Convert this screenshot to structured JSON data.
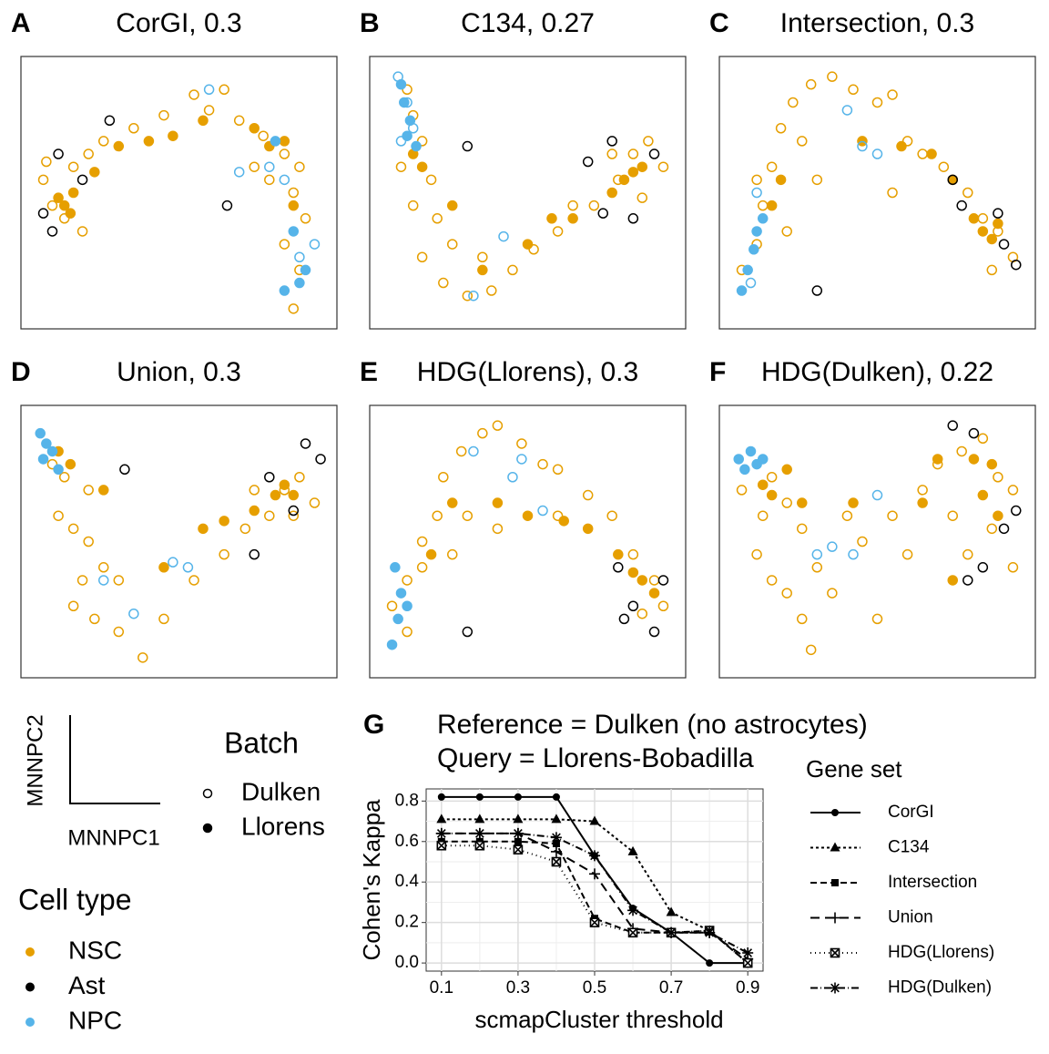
{
  "chart_data": [
    {
      "type": "scatter",
      "panel_label": "A",
      "title": "CorGI, 0.3",
      "xlim": [
        0,
        100
      ],
      "ylim": [
        0,
        100
      ],
      "series": [
        {
          "color": "#E69F00",
          "filled": false,
          "x": [
            5,
            8,
            12,
            15,
            20,
            25,
            35,
            45,
            55,
            60,
            70,
            78,
            85,
            90,
            88,
            92,
            85,
            90,
            88,
            80,
            18,
            6,
            65,
            75
          ],
          "y": [
            55,
            45,
            40,
            60,
            65,
            70,
            75,
            80,
            88,
            82,
            78,
            72,
            65,
            60,
            50,
            40,
            30,
            20,
            5,
            55,
            35,
            62,
            90,
            60
          ]
        },
        {
          "color": "#E69F00",
          "filled": true,
          "x": [
            10,
            12,
            15,
            22,
            30,
            40,
            48,
            58,
            75,
            80,
            85,
            88,
            14
          ],
          "y": [
            48,
            45,
            50,
            58,
            68,
            70,
            72,
            78,
            75,
            68,
            70,
            45,
            42
          ]
        },
        {
          "color": "#000000",
          "filled": false,
          "x": [
            5,
            10,
            18,
            27,
            66,
            8
          ],
          "y": [
            42,
            65,
            55,
            78,
            45,
            35
          ]
        },
        {
          "color": "#56B4E9",
          "filled": false,
          "x": [
            60,
            85,
            90,
            95,
            80,
            70
          ],
          "y": [
            90,
            55,
            25,
            30,
            60,
            58
          ]
        },
        {
          "color": "#56B4E9",
          "filled": true,
          "x": [
            88,
            90,
            92,
            85,
            82
          ],
          "y": [
            35,
            15,
            20,
            12,
            70
          ]
        }
      ]
    },
    {
      "type": "scatter",
      "panel_label": "B",
      "title": "C134, 0.27",
      "xlim": [
        0,
        100
      ],
      "ylim": [
        0,
        100
      ],
      "series": [
        {
          "color": "#E69F00",
          "filled": false,
          "x": [
            10,
            12,
            15,
            8,
            18,
            20,
            15,
            22,
            30,
            38,
            45,
            52,
            60,
            65,
            72,
            80,
            85,
            90,
            95,
            78,
            25,
            35,
            12,
            88
          ],
          "y": [
            90,
            80,
            70,
            60,
            55,
            40,
            25,
            15,
            10,
            12,
            20,
            28,
            35,
            45,
            45,
            55,
            65,
            70,
            60,
            65,
            30,
            25,
            45,
            48
          ]
        },
        {
          "color": "#E69F00",
          "filled": true,
          "x": [
            12,
            15,
            25,
            35,
            50,
            58,
            65,
            78,
            82,
            85,
            88
          ],
          "y": [
            65,
            60,
            45,
            20,
            30,
            40,
            40,
            50,
            55,
            58,
            60
          ]
        },
        {
          "color": "#000000",
          "filled": false,
          "x": [
            30,
            70,
            78,
            92,
            85,
            75
          ],
          "y": [
            68,
            62,
            70,
            65,
            40,
            42
          ]
        },
        {
          "color": "#56B4E9",
          "filled": false,
          "x": [
            7,
            10,
            12,
            8,
            42,
            32
          ],
          "y": [
            95,
            85,
            75,
            70,
            33,
            10
          ]
        },
        {
          "color": "#56B4E9",
          "filled": true,
          "x": [
            8,
            9,
            11,
            10,
            13
          ],
          "y": [
            92,
            85,
            78,
            72,
            68
          ]
        }
      ]
    },
    {
      "type": "scatter",
      "panel_label": "C",
      "title": "Intersection, 0.3",
      "xlim": [
        0,
        100
      ],
      "ylim": [
        0,
        100
      ],
      "series": [
        {
          "color": "#E69F00",
          "filled": false,
          "x": [
            5,
            10,
            12,
            15,
            18,
            22,
            28,
            35,
            42,
            50,
            55,
            60,
            65,
            72,
            80,
            85,
            90,
            95,
            88,
            25,
            30,
            20,
            10,
            55
          ],
          "y": [
            20,
            30,
            45,
            60,
            75,
            85,
            92,
            95,
            90,
            85,
            88,
            70,
            65,
            60,
            50,
            40,
            35,
            25,
            20,
            70,
            55,
            35,
            55,
            50
          ]
        },
        {
          "color": "#E69F00",
          "filled": true,
          "x": [
            15,
            18,
            45,
            58,
            68,
            75,
            82,
            85,
            88,
            90
          ],
          "y": [
            45,
            55,
            70,
            68,
            65,
            55,
            40,
            35,
            32,
            38
          ]
        },
        {
          "color": "#000000",
          "filled": false,
          "x": [
            30,
            75,
            78,
            92,
            96,
            90
          ],
          "y": [
            12,
            55,
            45,
            30,
            22,
            42
          ]
        },
        {
          "color": "#56B4E9",
          "filled": false,
          "x": [
            10,
            40,
            50,
            45,
            8
          ],
          "y": [
            50,
            82,
            65,
            68,
            15
          ]
        },
        {
          "color": "#56B4E9",
          "filled": true,
          "x": [
            5,
            7,
            9,
            10,
            12
          ],
          "y": [
            12,
            20,
            28,
            35,
            40
          ]
        }
      ]
    },
    {
      "type": "scatter",
      "panel_label": "D",
      "title": "Union, 0.3",
      "xlim": [
        0,
        100
      ],
      "ylim": [
        0,
        100
      ],
      "series": [
        {
          "color": "#E69F00",
          "filled": false,
          "x": [
            8,
            12,
            10,
            15,
            20,
            25,
            18,
            15,
            22,
            30,
            38,
            45,
            55,
            65,
            72,
            80,
            85,
            90,
            95,
            75,
            30,
            20,
            88
          ],
          "y": [
            80,
            75,
            60,
            55,
            50,
            40,
            35,
            25,
            20,
            15,
            5,
            20,
            35,
            45,
            55,
            60,
            70,
            75,
            65,
            70,
            35,
            70,
            60
          ]
        },
        {
          "color": "#E69F00",
          "filled": true,
          "x": [
            10,
            14,
            25,
            45,
            58,
            65,
            75,
            82,
            85,
            88
          ],
          "y": [
            85,
            80,
            70,
            40,
            55,
            58,
            62,
            68,
            72,
            68
          ]
        },
        {
          "color": "#000000",
          "filled": false,
          "x": [
            32,
            80,
            92,
            97,
            88,
            75
          ],
          "y": [
            78,
            75,
            88,
            82,
            62,
            45
          ]
        },
        {
          "color": "#56B4E9",
          "filled": false,
          "x": [
            25,
            35,
            48,
            53
          ],
          "y": [
            35,
            22,
            42,
            40
          ]
        },
        {
          "color": "#56B4E9",
          "filled": true,
          "x": [
            4,
            6,
            5,
            8,
            10
          ],
          "y": [
            92,
            88,
            82,
            85,
            78
          ]
        }
      ]
    },
    {
      "type": "scatter",
      "panel_label": "E",
      "title": "HDG(Llorens), 0.3",
      "xlim": [
        0,
        100
      ],
      "ylim": [
        0,
        100
      ],
      "series": [
        {
          "color": "#E69F00",
          "filled": false,
          "x": [
            5,
            10,
            15,
            20,
            22,
            28,
            35,
            40,
            48,
            55,
            60,
            70,
            78,
            85,
            92,
            95,
            88,
            30,
            40,
            15,
            25,
            60,
            10
          ],
          "y": [
            25,
            35,
            50,
            60,
            75,
            85,
            92,
            95,
            88,
            80,
            78,
            68,
            60,
            45,
            35,
            25,
            22,
            60,
            55,
            40,
            45,
            60,
            15
          ]
        },
        {
          "color": "#E69F00",
          "filled": true,
          "x": [
            18,
            25,
            40,
            50,
            62,
            70,
            80,
            85,
            88,
            92
          ],
          "y": [
            45,
            65,
            65,
            60,
            58,
            55,
            45,
            38,
            35,
            30
          ]
        },
        {
          "color": "#000000",
          "filled": false,
          "x": [
            30,
            80,
            92,
            95,
            82,
            85
          ],
          "y": [
            15,
            40,
            15,
            35,
            20,
            25
          ]
        },
        {
          "color": "#56B4E9",
          "filled": false,
          "x": [
            45,
            55,
            32,
            48
          ],
          "y": [
            75,
            62,
            85,
            82
          ]
        },
        {
          "color": "#56B4E9",
          "filled": true,
          "x": [
            5,
            7,
            8,
            6,
            10
          ],
          "y": [
            10,
            20,
            30,
            40,
            25
          ]
        }
      ]
    },
    {
      "type": "scatter",
      "panel_label": "F",
      "title": "HDG(Dulken), 0.22",
      "xlim": [
        0,
        100
      ],
      "ylim": [
        0,
        100
      ],
      "series": [
        {
          "color": "#E69F00",
          "filled": false,
          "x": [
            5,
            12,
            15,
            20,
            25,
            10,
            15,
            20,
            25,
            30,
            35,
            40,
            45,
            55,
            60,
            65,
            70,
            78,
            85,
            90,
            95,
            88,
            80,
            75,
            95,
            50,
            28
          ],
          "y": [
            70,
            60,
            75,
            65,
            55,
            45,
            35,
            30,
            20,
            40,
            30,
            60,
            50,
            60,
            45,
            70,
            80,
            85,
            90,
            75,
            70,
            55,
            45,
            60,
            40,
            20,
            8
          ]
        },
        {
          "color": "#E69F00",
          "filled": true,
          "x": [
            12,
            15,
            20,
            25,
            42,
            65,
            70,
            82,
            88,
            85,
            90,
            75
          ],
          "y": [
            72,
            68,
            78,
            65,
            65,
            65,
            82,
            82,
            80,
            68,
            60,
            35
          ]
        },
        {
          "color": "#000000",
          "filled": false,
          "x": [
            75,
            82,
            96,
            92,
            80,
            85
          ],
          "y": [
            95,
            92,
            62,
            55,
            35,
            40
          ]
        },
        {
          "color": "#56B4E9",
          "filled": false,
          "x": [
            50,
            35,
            42,
            30
          ],
          "y": [
            68,
            48,
            45,
            45
          ]
        },
        {
          "color": "#56B4E9",
          "filled": true,
          "x": [
            4,
            6,
            8,
            10,
            12
          ],
          "y": [
            82,
            78,
            85,
            80,
            82
          ]
        }
      ]
    },
    {
      "type": "line",
      "panel_label": "G",
      "title": "Reference = Dulken (no astrocytes)",
      "subtitle": "Query = Llorens-Bobadilla",
      "x_label": "scmapCluster threshold",
      "y_label": "Cohen's Kappa",
      "legend_title": "Gene set",
      "x": [
        0.1,
        0.2,
        0.3,
        0.4,
        0.5,
        0.6,
        0.7,
        0.8,
        0.9
      ],
      "xlim": [
        0.06,
        0.94
      ],
      "ylim": [
        -0.04,
        0.86
      ],
      "xticks": [
        0.1,
        0.3,
        0.5,
        0.7,
        0.9
      ],
      "x_minor_ticks": [
        0.2,
        0.4,
        0.6,
        0.8
      ],
      "yticks": [
        {
          "value": 0,
          "label": "0.0"
        },
        0.2,
        0.4,
        0.6,
        0.8
      ],
      "y_minor_ticks": [
        0.1,
        0.3,
        0.5,
        0.7
      ],
      "grid": true,
      "series": [
        {
          "name": "CorGI",
          "color": "#000000",
          "dash": "none",
          "marker": "circle",
          "values": [
            0.82,
            0.82,
            0.82,
            0.82,
            0.53,
            0.27,
            0.15,
            0.0,
            0.0
          ]
        },
        {
          "name": "C134",
          "color": "#000000",
          "dash": "3,3",
          "marker": "triangle",
          "values": [
            0.71,
            0.71,
            0.71,
            0.71,
            0.7,
            0.55,
            0.25,
            0.16,
            0.0
          ]
        },
        {
          "name": "Intersection",
          "color": "#000000",
          "dash": "7,4",
          "marker": "square",
          "values": [
            0.6,
            0.6,
            0.6,
            0.59,
            0.22,
            0.15,
            0.15,
            0.16,
            0.0
          ]
        },
        {
          "name": "Union",
          "color": "#000000",
          "dash": "10,6",
          "marker": "plus",
          "values": [
            0.64,
            0.64,
            0.64,
            0.55,
            0.44,
            0.17,
            0.15,
            0.15,
            0.02
          ]
        },
        {
          "name": "HDG(Llorens)",
          "color": "#000000",
          "dash": "1,4",
          "marker": "boxx",
          "values": [
            0.58,
            0.58,
            0.56,
            0.5,
            0.2,
            0.15,
            0.15,
            0.16,
            0.0
          ]
        },
        {
          "name": "HDG(Dulken)",
          "color": "#000000",
          "dash": "8,3,1,3",
          "marker": "asterisk",
          "values": [
            0.64,
            0.64,
            0.64,
            0.62,
            0.53,
            0.26,
            0.15,
            0.15,
            0.05
          ]
        }
      ]
    }
  ],
  "axis_glyph": {
    "x_label": "MNNPC1",
    "y_label": "MNNPC2"
  },
  "batch_legend": {
    "title": "Batch",
    "items": [
      {
        "name": "Dulken",
        "filled": false
      },
      {
        "name": "Llorens",
        "filled": true
      }
    ]
  },
  "cell_type_legend": {
    "title": "Cell type",
    "items": [
      {
        "name": "NSC",
        "color": "#E69F00"
      },
      {
        "name": "Ast",
        "color": "#000000"
      },
      {
        "name": "NPC",
        "color": "#56B4E9"
      }
    ]
  }
}
